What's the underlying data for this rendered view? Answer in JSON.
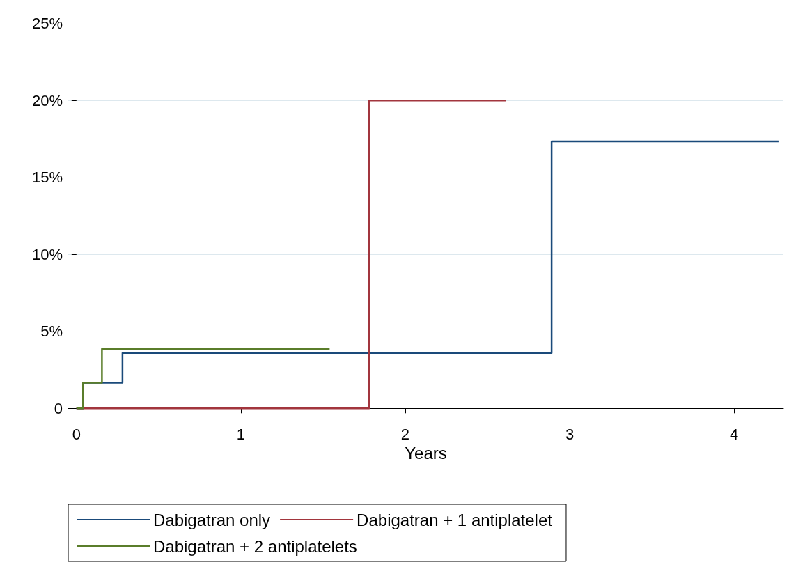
{
  "chart_data": {
    "type": "step",
    "xlabel": "Years",
    "xlim": [
      -0.05,
      4.3
    ],
    "xticks": [
      0,
      1,
      2,
      3,
      4
    ],
    "ylim": [
      -0.8,
      25.9
    ],
    "yticks": [
      {
        "value": 0,
        "label": "0"
      },
      {
        "value": 5,
        "label": "5%"
      },
      {
        "value": 10,
        "label": "10%"
      },
      {
        "value": 15,
        "label": "15%"
      },
      {
        "value": 20,
        "label": "20%"
      },
      {
        "value": 25,
        "label": "25%"
      }
    ],
    "grid": "y",
    "legend": "bottom",
    "marker": "none",
    "line_style": "solid",
    "series": [
      {
        "name": "Dabigatran only",
        "color": "#1a4a7a",
        "x": [
          0,
          0.04,
          0.28,
          2.89,
          4.27
        ],
        "values": [
          0,
          1.67,
          3.6,
          17.35,
          17.35
        ]
      },
      {
        "name": "Dabigatran + 1 antiplatelet",
        "color": "#a2353d",
        "x": [
          0,
          1.78,
          2.61
        ],
        "values": [
          0,
          20,
          20
        ]
      },
      {
        "name": "Dabigatran + 2 antiplatelets",
        "color": "#5a7d2a",
        "x": [
          0,
          0.04,
          0.155,
          1.54
        ],
        "values": [
          0,
          1.67,
          3.87,
          3.87
        ]
      }
    ]
  }
}
